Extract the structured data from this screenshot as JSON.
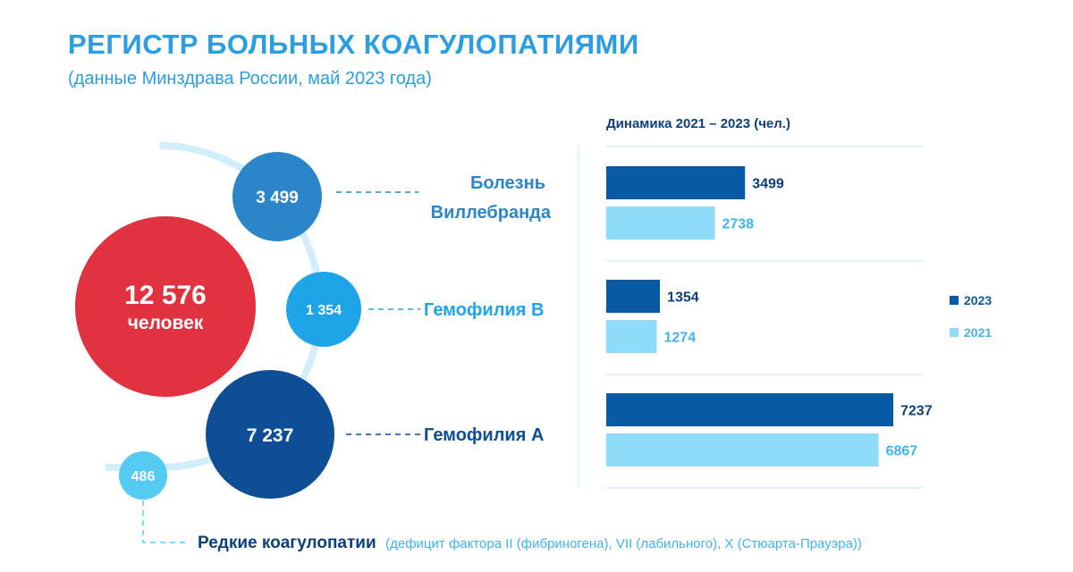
{
  "header": {
    "title": "РЕГИСТР БОЛЬНЫХ КОАГУЛОПАТИЯМИ",
    "subtitle": "(данные Минздрава России, май 2023 года)"
  },
  "total": {
    "value": "12 576",
    "unit": "человек",
    "color": "#e2313f"
  },
  "groups": [
    {
      "value": "3 499",
      "label_lines": [
        "Болезнь",
        "Виллебранда"
      ],
      "color": "#2b86c9",
      "label_color": "#2b86c9"
    },
    {
      "value": "1 354",
      "label_lines": [
        "Гемофилия В"
      ],
      "color": "#1ea4e8",
      "label_color": "#1ea4e8"
    },
    {
      "value": "7 237",
      "label_lines": [
        "Гемофилия А"
      ],
      "color": "#0d4e94",
      "label_color": "#0d4e94"
    }
  ],
  "rare": {
    "value": "486",
    "label": "Редкие коагулопатии",
    "detail": "(дефицит фактора II (фибриногена), VII (лабильного), X (Стюарта-Прауэра))",
    "color": "#55cbf4"
  },
  "chart_data": {
    "type": "bar",
    "orientation": "horizontal",
    "title": "Динамика 2021 – 2023 (чел.)",
    "categories": [
      "Болезнь Виллебранда",
      "Гемофилия В",
      "Гемофилия А"
    ],
    "series": [
      {
        "name": "2023",
        "values": [
          3499,
          1354,
          7237
        ],
        "color": "#0a5aa3"
      },
      {
        "name": "2021",
        "values": [
          2738,
          1274,
          6867
        ],
        "color": "#8fdcfa"
      }
    ],
    "xlim": [
      0,
      7237
    ],
    "grid": false,
    "legend": "right"
  }
}
